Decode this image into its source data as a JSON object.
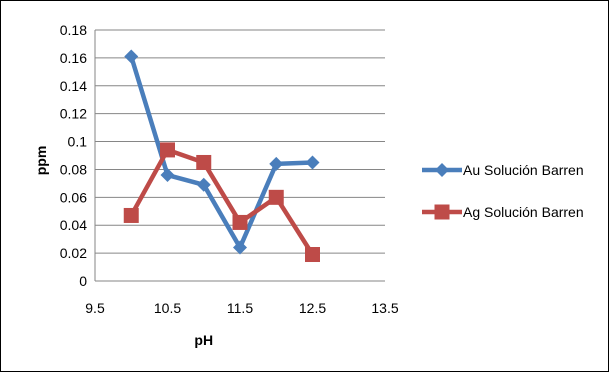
{
  "chart_data": {
    "type": "scatter",
    "title": "",
    "xlabel": "pH",
    "ylabel": "ppm",
    "xlim": [
      9.5,
      13.5
    ],
    "ylim": [
      0,
      0.18
    ],
    "xticks": [
      9.5,
      10.5,
      11.5,
      12.5,
      13.5
    ],
    "yticks": [
      0,
      0.02,
      0.04,
      0.06,
      0.08,
      0.1,
      0.12,
      0.14,
      0.16,
      0.18
    ],
    "grid": "horizontal",
    "legend_position": "right",
    "series": [
      {
        "name": "Au Solución Barren",
        "marker": "diamond",
        "color": "#4a7ebb",
        "x": [
          10,
          10.5,
          11,
          11.5,
          12,
          12.5
        ],
        "y": [
          0.161,
          0.076,
          0.069,
          0.024,
          0.084,
          0.085
        ]
      },
      {
        "name": "Ag Solución Barren",
        "marker": "square",
        "color": "#be4b48",
        "x": [
          10,
          10.5,
          11,
          11.5,
          12,
          12.5
        ],
        "y": [
          0.047,
          0.094,
          0.085,
          0.042,
          0.06,
          0.019
        ]
      }
    ]
  }
}
